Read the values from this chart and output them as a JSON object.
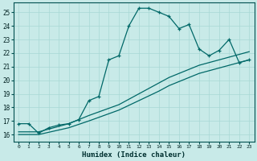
{
  "xlabel": "Humidex (Indice chaleur)",
  "bg_color": "#c8eae8",
  "grid_color": "#a8d8d4",
  "line_color": "#006868",
  "xlim": [
    -0.5,
    23.5
  ],
  "ylim": [
    15.5,
    25.7
  ],
  "xticks": [
    0,
    1,
    2,
    3,
    4,
    5,
    6,
    7,
    8,
    9,
    10,
    11,
    12,
    13,
    14,
    15,
    16,
    17,
    18,
    19,
    20,
    21,
    22,
    23
  ],
  "yticks": [
    16,
    17,
    18,
    19,
    20,
    21,
    22,
    23,
    24,
    25
  ],
  "curve1_x": [
    0,
    1,
    2,
    3,
    4,
    5,
    6,
    7,
    8,
    9,
    10,
    11,
    12,
    13,
    14,
    15,
    16,
    17,
    18,
    19,
    20,
    21,
    22,
    23
  ],
  "curve1_y": [
    16.8,
    16.8,
    16.1,
    16.5,
    16.7,
    16.8,
    17.1,
    18.5,
    18.8,
    21.5,
    21.8,
    24.0,
    25.3,
    25.3,
    25.0,
    24.7,
    23.8,
    24.1,
    22.3,
    21.8,
    22.2,
    23.0,
    21.3,
    21.5
  ],
  "curve2_x": [
    0,
    2,
    5,
    7,
    10,
    12,
    14,
    15,
    16,
    17,
    18,
    19,
    20,
    21,
    22,
    23
  ],
  "curve2_y": [
    16.2,
    16.2,
    16.8,
    17.4,
    18.2,
    19.0,
    19.8,
    20.2,
    20.5,
    20.8,
    21.1,
    21.3,
    21.5,
    21.7,
    21.9,
    22.1
  ],
  "curve3_x": [
    0,
    2,
    5,
    7,
    10,
    12,
    14,
    15,
    16,
    17,
    18,
    19,
    20,
    21,
    22,
    23
  ],
  "curve3_y": [
    16.0,
    16.0,
    16.5,
    17.0,
    17.8,
    18.5,
    19.2,
    19.6,
    19.9,
    20.2,
    20.5,
    20.7,
    20.9,
    21.1,
    21.3,
    21.5
  ]
}
